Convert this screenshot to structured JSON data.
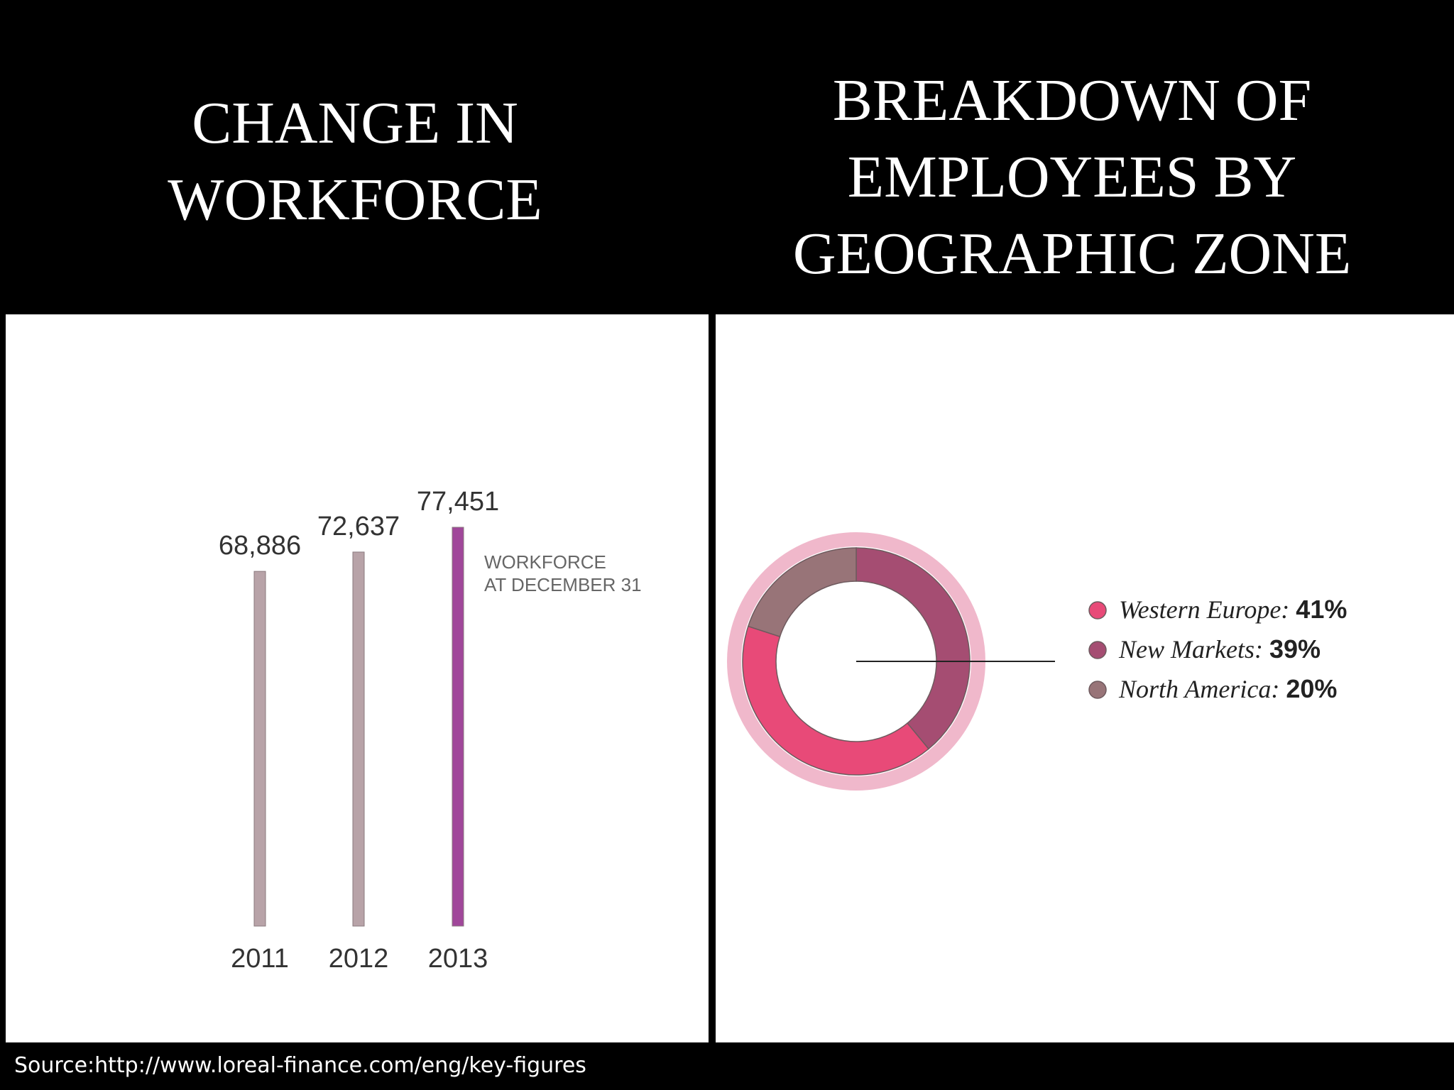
{
  "titles": {
    "left": "CHANGE IN\nWORKFORCE",
    "right": "BREAKDOWN OF\nEMPLOYEES BY\nGEOGRAPHIC ZONE"
  },
  "source": "Source:http://www.loreal-finance.com/eng/key-figures",
  "chart_data": [
    {
      "type": "bar",
      "title": "CHANGE IN WORKFORCE",
      "categories": [
        "2011",
        "2012",
        "2013"
      ],
      "values": [
        68886,
        72637,
        77451
      ],
      "value_labels": [
        "68,886",
        "72,637",
        "77,451"
      ],
      "note": [
        "WORKFORCE",
        "AT DECEMBER 31"
      ],
      "colors": [
        "#b8a3a8",
        "#b8a3a8",
        "#a0479a"
      ],
      "ylim": [
        0,
        80000
      ],
      "grid": false,
      "legend": "none"
    },
    {
      "type": "pie",
      "title": "BREAKDOWN OF EMPLOYEES BY GEOGRAPHIC ZONE",
      "donut": true,
      "slices": [
        {
          "name": "New Markets",
          "value": 39,
          "label": "New Markets:",
          "pct": "39%",
          "color": "#a54d72"
        },
        {
          "name": "Western Europe",
          "value": 41,
          "label": "Western Europe:",
          "pct": "41%",
          "color": "#e84a78"
        },
        {
          "name": "North America",
          "value": 20,
          "label": "North America:",
          "pct": "20%",
          "color": "#987478"
        }
      ],
      "legend_order": [
        1,
        0,
        2
      ],
      "legend": "right"
    }
  ]
}
